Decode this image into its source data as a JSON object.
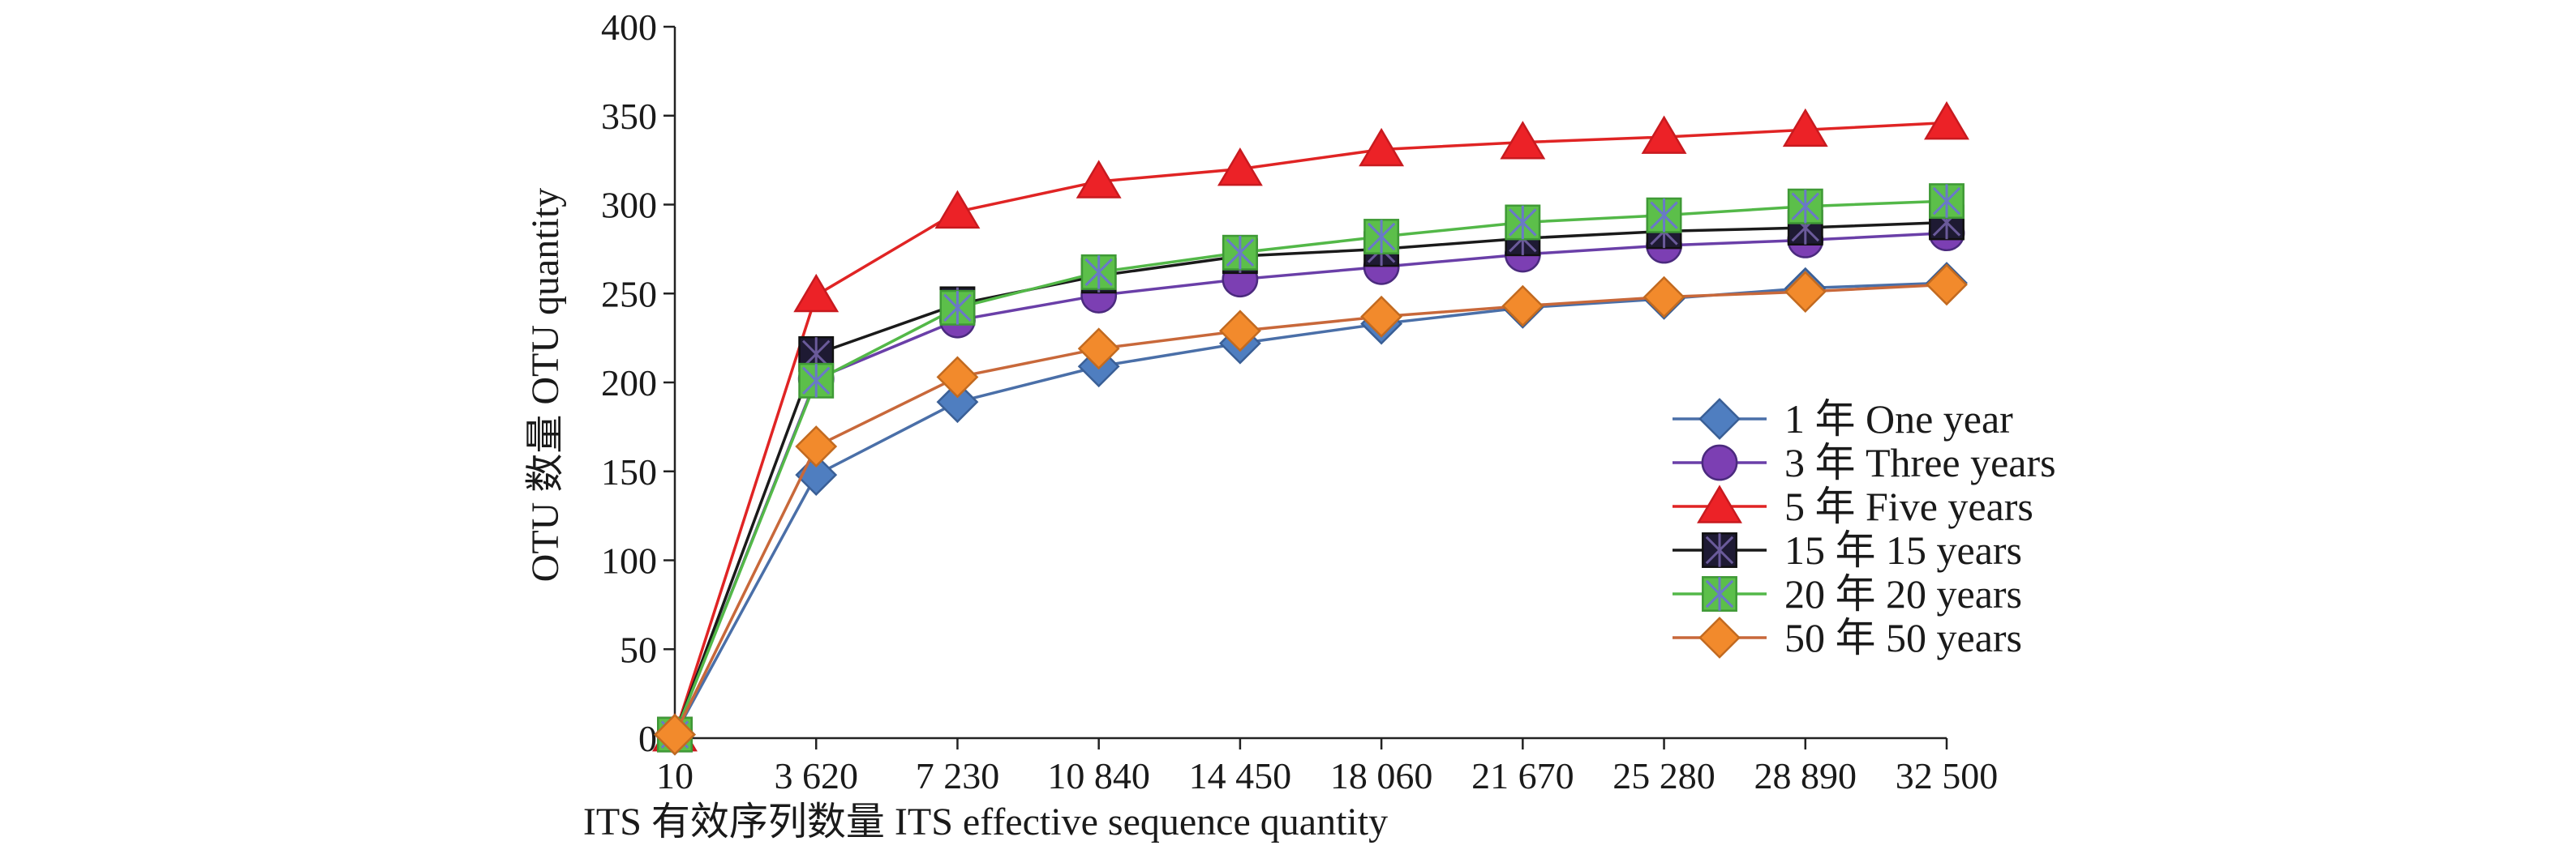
{
  "chart_data": {
    "type": "line",
    "title": "",
    "xlabel": "ITS 有效序列数量 ITS effective sequence quantity",
    "ylabel": "OTU 数量 OTU quantity",
    "x_tick_labels": [
      "10",
      "3 620",
      "7 230",
      "10 840",
      "14 450",
      "18 060",
      "21 670",
      "25 280",
      "28 890",
      "32 500"
    ],
    "x": [
      10,
      3620,
      7230,
      10840,
      14450,
      18060,
      21670,
      25280,
      28890,
      32500
    ],
    "ylim": [
      0,
      400
    ],
    "yticks": [
      0,
      50,
      100,
      150,
      200,
      250,
      300,
      350,
      400
    ],
    "grid": false,
    "legend_position": "right",
    "series": [
      {
        "name": "1 年 One year",
        "marker": "diamond",
        "line_color": "#4a6fa8",
        "marker_fill": "#4f7ec0",
        "marker_stroke": "#3a5f96",
        "values": [
          2,
          148,
          189,
          209,
          222,
          233,
          242,
          247,
          253,
          256
        ]
      },
      {
        "name": "3 年 Three years",
        "marker": "circle",
        "line_color": "#6a3fa8",
        "marker_fill": "#7c3fb3",
        "marker_stroke": "#4b2a7e",
        "values": [
          2,
          202,
          235,
          249,
          258,
          265,
          272,
          277,
          280,
          284
        ]
      },
      {
        "name": "5 年 Five years",
        "marker": "triangle",
        "line_color": "#e02424",
        "marker_fill": "#ec2227",
        "marker_stroke": "#c81a1f",
        "values": [
          2,
          249,
          296,
          313,
          320,
          331,
          335,
          338,
          342,
          346
        ]
      },
      {
        "name": "15 年 15 years",
        "marker": "square-star",
        "line_color": "#1a1a1a",
        "marker_fill": "#1e1a33",
        "marker_stroke": "#111111",
        "star_color": "#6a5a9a",
        "values": [
          2,
          216,
          244,
          260,
          271,
          275,
          281,
          285,
          287,
          290
        ]
      },
      {
        "name": "20 年 20 years",
        "marker": "square-star",
        "line_color": "#53b848",
        "marker_fill": "#5cbf4a",
        "marker_stroke": "#3f9a36",
        "star_color": "#6a78c8",
        "values": [
          2,
          201,
          242,
          262,
          273,
          282,
          290,
          294,
          299,
          302
        ]
      },
      {
        "name": "50 年 50 years",
        "marker": "diamond",
        "line_color": "#c8683a",
        "marker_fill": "#f28a2c",
        "marker_stroke": "#c26a20",
        "values": [
          2,
          164,
          203,
          219,
          229,
          237,
          243,
          248,
          251,
          255
        ]
      }
    ]
  }
}
